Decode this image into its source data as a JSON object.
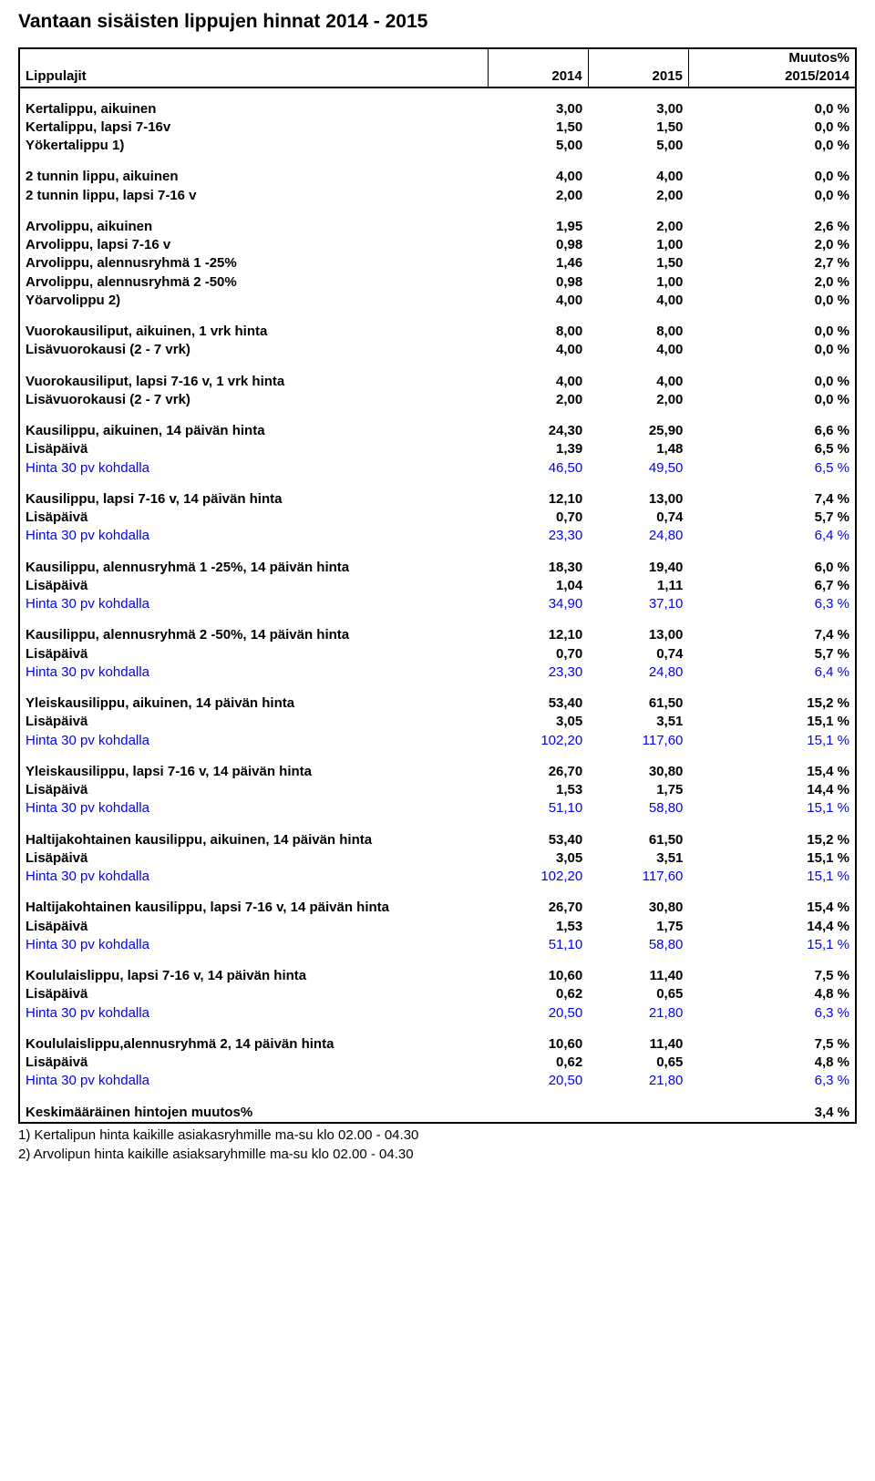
{
  "title": "Vantaan sisäisten lippujen hinnat 2014 - 2015",
  "header": {
    "col_label": "Lippulajit",
    "col_2014": "2014",
    "col_2015": "2015",
    "col_pct_top": "Muutos%",
    "col_pct_bot": "2015/2014"
  },
  "colors": {
    "blue": "#0000ff",
    "text": "#000000",
    "bg": "#ffffff"
  },
  "groups": [
    {
      "rows": [
        {
          "label": "Kertalippu, aikuinen",
          "v14": "3,00",
          "v15": "3,00",
          "pct": "0,0 %",
          "bold": true
        },
        {
          "label": "Kertalippu, lapsi 7-16v",
          "v14": "1,50",
          "v15": "1,50",
          "pct": "0,0 %",
          "bold": true
        },
        {
          "label": "Yökertalippu   1)",
          "v14": "5,00",
          "v15": "5,00",
          "pct": "0,0 %",
          "bold": true
        }
      ]
    },
    {
      "rows": [
        {
          "label": "2 tunnin lippu, aikuinen",
          "v14": "4,00",
          "v15": "4,00",
          "pct": "0,0 %",
          "bold": true
        },
        {
          "label": "2 tunnin lippu, lapsi 7-16 v",
          "v14": "2,00",
          "v15": "2,00",
          "pct": "0,0 %",
          "bold": true
        }
      ]
    },
    {
      "rows": [
        {
          "label": "Arvolippu, aikuinen",
          "v14": "1,95",
          "v15": "2,00",
          "pct": "2,6 %",
          "bold": true
        },
        {
          "label": "Arvolippu, lapsi 7-16 v",
          "v14": "0,98",
          "v15": "1,00",
          "pct": "2,0 %",
          "bold": true
        },
        {
          "label": "Arvolippu, alennusryhmä 1  -25%",
          "v14": "1,46",
          "v15": "1,50",
          "pct": "2,7 %",
          "bold": true
        },
        {
          "label": "Arvolippu, alennusryhmä 2  -50%",
          "v14": "0,98",
          "v15": "1,00",
          "pct": "2,0 %",
          "bold": true
        },
        {
          "label": "Yöarvolippu   2)",
          "v14": "4,00",
          "v15": "4,00",
          "pct": "0,0 %",
          "bold": true
        }
      ]
    },
    {
      "rows": [
        {
          "label": "Vuorokausiliput, aikuinen, 1 vrk hinta",
          "v14": "8,00",
          "v15": "8,00",
          "pct": "0,0 %",
          "bold": true
        },
        {
          "label": "Lisävuorokausi (2 - 7 vrk)",
          "v14": "4,00",
          "v15": "4,00",
          "pct": "0,0 %",
          "bold": true
        }
      ]
    },
    {
      "rows": [
        {
          "label": "Vuorokausiliput, lapsi 7-16 v, 1 vrk hinta",
          "v14": "4,00",
          "v15": "4,00",
          "pct": "0,0 %",
          "bold": true
        },
        {
          "label": "Lisävuorokausi (2 - 7 vrk)",
          "v14": "2,00",
          "v15": "2,00",
          "pct": "0,0 %",
          "bold": true
        }
      ]
    },
    {
      "rows": [
        {
          "label": "Kausilippu, aikuinen, 14 päivän hinta",
          "v14": "24,30",
          "v15": "25,90",
          "pct": "6,6 %",
          "bold": true
        },
        {
          "label": "Lisäpäivä",
          "v14": "1,39",
          "v15": "1,48",
          "pct": "6,5 %",
          "bold": true
        },
        {
          "label": "Hinta 30 pv kohdalla",
          "v14": "46,50",
          "v15": "49,50",
          "pct": "6,5 %",
          "blue": true
        }
      ]
    },
    {
      "rows": [
        {
          "label": "Kausilippu, lapsi 7-16 v, 14 päivän hinta",
          "v14": "12,10",
          "v15": "13,00",
          "pct": "7,4 %",
          "bold": true
        },
        {
          "label": "Lisäpäivä",
          "v14": "0,70",
          "v15": "0,74",
          "pct": "5,7 %",
          "bold": true
        },
        {
          "label": "Hinta 30 pv kohdalla",
          "v14": "23,30",
          "v15": "24,80",
          "pct": "6,4 %",
          "blue": true
        }
      ]
    },
    {
      "rows": [
        {
          "label": "Kausilippu, alennusryhmä 1 -25%, 14 päivän hinta",
          "v14": "18,30",
          "v15": "19,40",
          "pct": "6,0 %",
          "bold": true
        },
        {
          "label": "Lisäpäivä",
          "v14": "1,04",
          "v15": "1,11",
          "pct": "6,7 %",
          "bold": true
        },
        {
          "label": "Hinta 30 pv kohdalla",
          "v14": "34,90",
          "v15": "37,10",
          "pct": "6,3 %",
          "blue": true
        }
      ]
    },
    {
      "rows": [
        {
          "label": "Kausilippu, alennusryhmä 2 -50%, 14 päivän hinta",
          "v14": "12,10",
          "v15": "13,00",
          "pct": "7,4 %",
          "bold": true
        },
        {
          "label": "Lisäpäivä",
          "v14": "0,70",
          "v15": "0,74",
          "pct": "5,7 %",
          "bold": true
        },
        {
          "label": "Hinta 30 pv kohdalla",
          "v14": "23,30",
          "v15": "24,80",
          "pct": "6,4 %",
          "blue": true
        }
      ]
    },
    {
      "rows": [
        {
          "label": "Yleiskausilippu, aikuinen, 14 päivän hinta",
          "v14": "53,40",
          "v15": "61,50",
          "pct": "15,2 %",
          "bold": true
        },
        {
          "label": "Lisäpäivä",
          "v14": "3,05",
          "v15": "3,51",
          "pct": "15,1 %",
          "bold": true
        },
        {
          "label": "Hinta 30 pv kohdalla",
          "v14": "102,20",
          "v15": "117,60",
          "pct": "15,1 %",
          "blue": true
        }
      ]
    },
    {
      "rows": [
        {
          "label": "Yleiskausilippu, lapsi 7-16 v, 14 päivän hinta",
          "v14": "26,70",
          "v15": "30,80",
          "pct": "15,4 %",
          "bold": true
        },
        {
          "label": "Lisäpäivä",
          "v14": "1,53",
          "v15": "1,75",
          "pct": "14,4 %",
          "bold": true
        },
        {
          "label": "Hinta 30 pv kohdalla",
          "v14": "51,10",
          "v15": "58,80",
          "pct": "15,1 %",
          "blue": true
        }
      ]
    },
    {
      "rows": [
        {
          "label": "Haltijakohtainen kausilippu, aikuinen, 14 päivän hinta",
          "v14": "53,40",
          "v15": "61,50",
          "pct": "15,2 %",
          "bold": true
        },
        {
          "label": "Lisäpäivä",
          "v14": "3,05",
          "v15": "3,51",
          "pct": "15,1 %",
          "bold": true
        },
        {
          "label": "Hinta 30 pv kohdalla",
          "v14": "102,20",
          "v15": "117,60",
          "pct": "15,1 %",
          "blue": true
        }
      ]
    },
    {
      "rows": [
        {
          "label": "Haltijakohtainen kausilippu, lapsi 7-16 v, 14 päivän hinta",
          "v14": "26,70",
          "v15": "30,80",
          "pct": "15,4 %",
          "bold": true
        },
        {
          "label": "Lisäpäivä",
          "v14": "1,53",
          "v15": "1,75",
          "pct": "14,4 %",
          "bold": true
        },
        {
          "label": "Hinta 30 pv kohdalla",
          "v14": "51,10",
          "v15": "58,80",
          "pct": "15,1 %",
          "blue": true
        }
      ]
    },
    {
      "rows": [
        {
          "label": "Koululaislippu, lapsi 7-16 v, 14 päivän hinta",
          "v14": "10,60",
          "v15": "11,40",
          "pct": "7,5 %",
          "bold": true
        },
        {
          "label": "Lisäpäivä",
          "v14": "0,62",
          "v15": "0,65",
          "pct": "4,8 %",
          "bold": true
        },
        {
          "label": "Hinta 30 pv kohdalla",
          "v14": "20,50",
          "v15": "21,80",
          "pct": "6,3 %",
          "blue": true
        }
      ]
    },
    {
      "rows": [
        {
          "label": "Koululaislippu,alennusryhmä 2, 14 päivän hinta",
          "v14": "10,60",
          "v15": "11,40",
          "pct": "7,5 %",
          "bold": true
        },
        {
          "label": "Lisäpäivä",
          "v14": "0,62",
          "v15": "0,65",
          "pct": "4,8 %",
          "bold": true
        },
        {
          "label": "Hinta 30 pv kohdalla",
          "v14": "20,50",
          "v15": "21,80",
          "pct": "6,3 %",
          "blue": true
        }
      ]
    },
    {
      "rows": [
        {
          "label": "Keskimääräinen hintojen muutos%",
          "v14": "",
          "v15": "",
          "pct": "3,4 %",
          "bold": true
        }
      ],
      "last": true
    }
  ],
  "footnotes": [
    "1) Kertalipun hinta kaikille asiakasryhmille ma-su klo 02.00 - 04.30",
    "2) Arvolipun hinta kaikille asiaksaryhmille ma-su klo 02.00 - 04.30"
  ]
}
